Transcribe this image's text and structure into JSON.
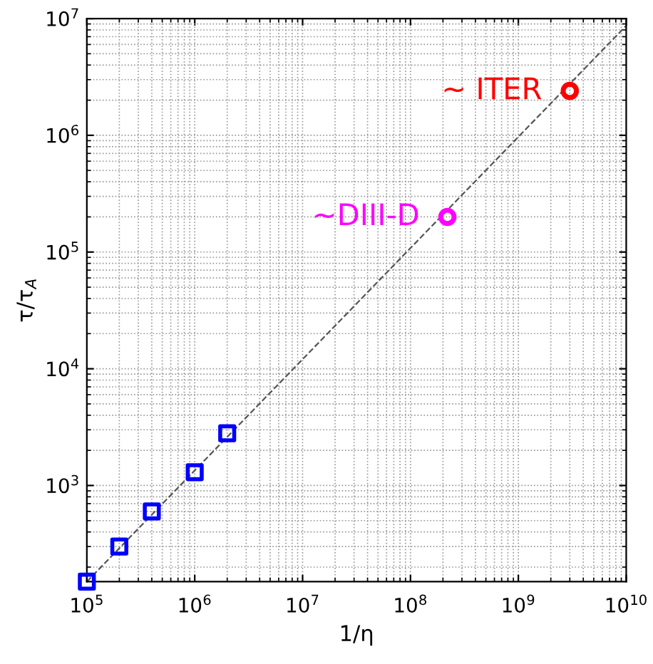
{
  "chart_data": {
    "type": "scatter",
    "xlabel": "1/η",
    "ylabel": "τ/τ$_{A}$",
    "log": "xy",
    "grid": true,
    "xlim": [
      100000,
      10000000000
    ],
    "ylim": [
      150,
      10000000
    ],
    "xticks": [
      {
        "value": 100000,
        "label": "10$^{5}$"
      },
      {
        "value": 1000000,
        "label": "10$^{6}$"
      },
      {
        "value": 10000000,
        "label": "10$^{7}$"
      },
      {
        "value": 100000000,
        "label": "10$^{8}$"
      },
      {
        "value": 1000000000,
        "label": "10$^{9}$"
      },
      {
        "value": 10000000000,
        "label": "10$^{10}$"
      }
    ],
    "yticks": [
      {
        "value": 1000,
        "label": "10$^{3}$"
      },
      {
        "value": 10000,
        "label": "10$^{4}$"
      },
      {
        "value": 100000,
        "label": "10$^{5}$"
      },
      {
        "value": 1000000,
        "label": "10$^{6}$"
      },
      {
        "value": 10000000,
        "label": "10$^{7}$"
      }
    ],
    "series": [
      {
        "type": "line",
        "line_style": "dashed",
        "marker": "none",
        "color": "#555555",
        "x": [
          100000,
          10000000000
        ],
        "values": [
          150,
          8700000
        ]
      },
      {
        "marker": "square",
        "color": "#0000ff",
        "x": [
          100000,
          200000,
          400000,
          1000000,
          2000000
        ],
        "values": [
          150,
          300,
          600,
          1300,
          2800
        ]
      },
      {
        "marker": "circle",
        "color": "#ff00ff",
        "x": [
          220000000
        ],
        "values": [
          200000
        ]
      },
      {
        "marker": "circle",
        "color": "#ff0000",
        "x": [
          3000000000
        ],
        "values": [
          2400000
        ]
      }
    ],
    "annotations": [
      {
        "text": "~DIII-D",
        "x": 220000000,
        "y": 200000
      },
      {
        "text": "~ ITER",
        "x": 3000000000,
        "y": 2400000
      }
    ]
  }
}
